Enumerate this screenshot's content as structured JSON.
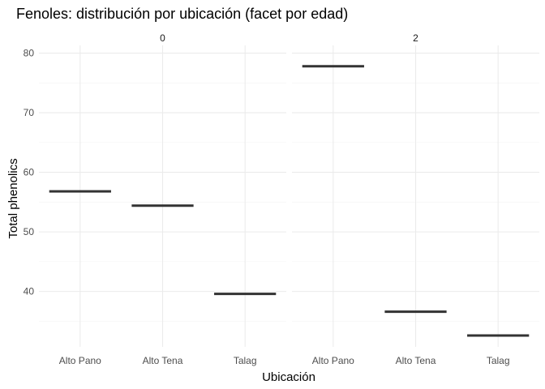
{
  "chart_data": {
    "type": "boxplot",
    "title": "Fenoles: distribución por ubicación (facet por edad)",
    "xlabel": "Ubicación",
    "ylabel": "Total phenolics",
    "categories": [
      "Alto Pano",
      "Alto Tena",
      "Talag"
    ],
    "y_ticks": [
      40,
      50,
      60,
      70,
      80
    ],
    "ylim": [
      30.7,
      81.3
    ],
    "grid": true,
    "facets": [
      {
        "label": "0",
        "values": [
          56.8,
          54.4,
          39.6
        ]
      },
      {
        "label": "2",
        "values": [
          77.8,
          36.6,
          32.6
        ]
      }
    ]
  }
}
